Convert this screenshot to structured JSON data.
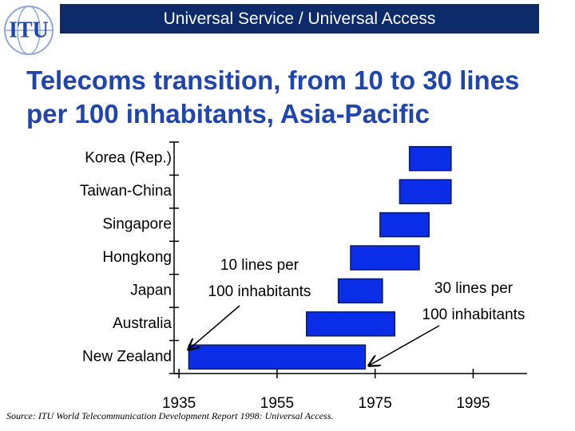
{
  "header": {
    "text": "Universal Service / Universal Access",
    "logo": "ITU"
  },
  "chart_data": {
    "type": "range-bar",
    "title": "Telecoms transition, from 10 to 30 lines per 100 inhabitants, Asia-Pacific",
    "categories": [
      "Korea (Rep.)",
      "Taiwan-China",
      "Singapore",
      "Hongkong",
      "Japan",
      "Australia",
      "New Zealand"
    ],
    "starts": [
      1982,
      1980,
      1976,
      1970,
      1967.5,
      1961,
      1937
    ],
    "ends": [
      1990.5,
      1990.5,
      1986,
      1984,
      1976.5,
      1979,
      1973
    ],
    "color": "#0a2ee8",
    "xlim": [
      1934,
      2006
    ],
    "xticks": [
      1935,
      1955,
      1975,
      1995
    ],
    "annotations": [
      {
        "lines": [
          "10 lines per",
          "100 inhabitants"
        ]
      },
      {
        "lines": [
          "30 lines per",
          "100 inhabitants"
        ]
      }
    ],
    "source": "Source:  ITU World Telecommunication Development Report 1998:  Universal Access."
  }
}
